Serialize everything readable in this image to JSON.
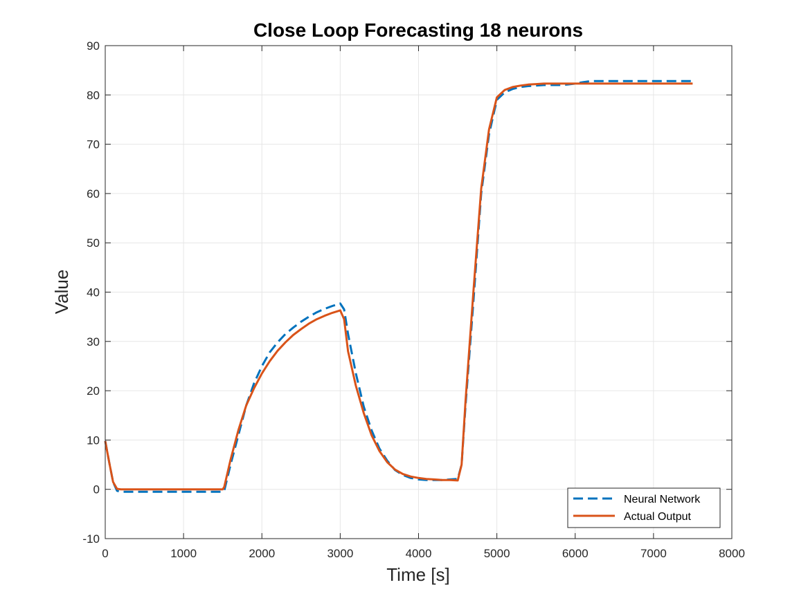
{
  "chart_data": {
    "type": "line",
    "title": "Close Loop Forecasting 18 neurons",
    "xlabel": "Time [s]",
    "ylabel": "Value",
    "xlim": [
      0,
      8000
    ],
    "ylim": [
      -10,
      90
    ],
    "xticks": [
      0,
      1000,
      2000,
      3000,
      4000,
      5000,
      6000,
      7000,
      8000
    ],
    "yticks": [
      -10,
      0,
      10,
      20,
      30,
      40,
      50,
      60,
      70,
      80,
      90
    ],
    "grid": true,
    "legend_position": "bottom-right",
    "series": [
      {
        "name": "Neural Network",
        "color": "#0072BD",
        "style": "dashed",
        "x": [
          0,
          50,
          100,
          150,
          200,
          300,
          500,
          800,
          1000,
          1200,
          1400,
          1500,
          1520,
          1600,
          1700,
          1800,
          1900,
          2000,
          2100,
          2200,
          2300,
          2400,
          2500,
          2600,
          2700,
          2800,
          2900,
          3000,
          3050,
          3100,
          3200,
          3300,
          3400,
          3500,
          3600,
          3700,
          3800,
          3900,
          4000,
          4100,
          4200,
          4300,
          4400,
          4500,
          4550,
          4600,
          4700,
          4800,
          4900,
          5000,
          5100,
          5200,
          5300,
          5400,
          5500,
          5600,
          5700,
          5800,
          5900,
          6000,
          6100,
          6200,
          6400,
          6600,
          6800,
          7000,
          7200,
          7400,
          7500
        ],
        "values": [
          9.8,
          5.5,
          1.5,
          -0.3,
          -0.5,
          -0.5,
          -0.5,
          -0.5,
          -0.5,
          -0.5,
          -0.5,
          -0.5,
          -0.3,
          5,
          11,
          17,
          21.5,
          25,
          27.8,
          29.8,
          31.5,
          32.8,
          34,
          35,
          35.9,
          36.6,
          37.2,
          37.7,
          36.5,
          31.5,
          23.5,
          16.8,
          12,
          8.3,
          5.8,
          3.9,
          2.9,
          2.3,
          2,
          1.9,
          1.9,
          1.9,
          2,
          2.1,
          5,
          17,
          38,
          60,
          72,
          79,
          80.5,
          81.2,
          81.6,
          81.8,
          81.9,
          82,
          82,
          82,
          82.1,
          82.3,
          82.6,
          82.8,
          82.8,
          82.8,
          82.8,
          82.8,
          82.8,
          82.8,
          82.8
        ]
      },
      {
        "name": "Actual Output",
        "color": "#D95319",
        "style": "solid",
        "x": [
          0,
          50,
          100,
          150,
          200,
          300,
          500,
          800,
          1000,
          1200,
          1400,
          1500,
          1520,
          1600,
          1700,
          1800,
          1900,
          2000,
          2100,
          2200,
          2300,
          2400,
          2500,
          2600,
          2700,
          2800,
          2900,
          3000,
          3050,
          3100,
          3200,
          3300,
          3400,
          3500,
          3600,
          3700,
          3800,
          3900,
          4000,
          4100,
          4200,
          4300,
          4400,
          4500,
          4550,
          4600,
          4700,
          4800,
          4900,
          5000,
          5100,
          5200,
          5300,
          5400,
          5500,
          5600,
          5700,
          5800,
          5900,
          6000,
          6100,
          6200,
          6400,
          6600,
          6800,
          7000,
          7200,
          7400,
          7500
        ],
        "values": [
          9.8,
          5.5,
          1.5,
          0.1,
          0,
          0,
          0,
          0,
          0,
          0,
          0,
          0,
          0.5,
          6,
          12,
          17,
          20.5,
          23.5,
          26,
          28.1,
          29.8,
          31.3,
          32.5,
          33.6,
          34.5,
          35.2,
          35.8,
          36.3,
          34.5,
          28,
          21,
          15.5,
          11,
          7.8,
          5.5,
          4,
          3.1,
          2.6,
          2.3,
          2.1,
          2,
          1.9,
          1.9,
          1.8,
          5,
          18,
          40,
          61,
          73,
          79.5,
          81,
          81.6,
          81.9,
          82.1,
          82.2,
          82.3,
          82.3,
          82.3,
          82.3,
          82.3,
          82.3,
          82.3,
          82.3,
          82.3,
          82.3,
          82.3,
          82.3,
          82.3,
          82.3
        ]
      }
    ]
  }
}
